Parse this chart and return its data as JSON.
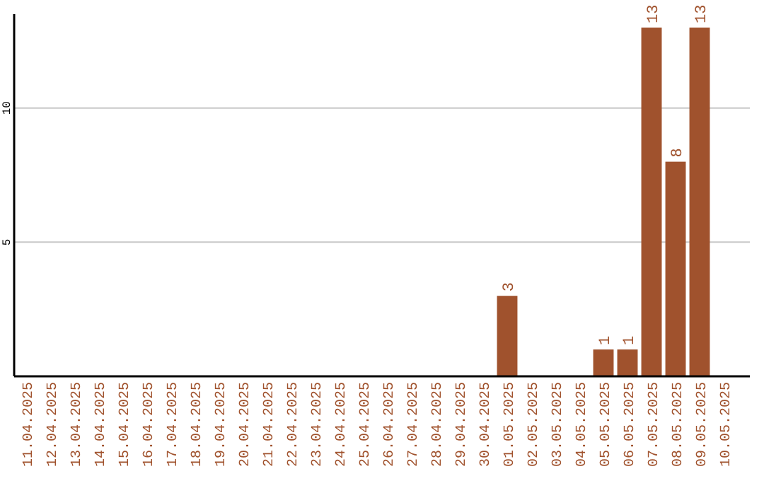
{
  "chart_data": {
    "type": "bar",
    "categories": [
      "11.04.2025",
      "12.04.2025",
      "13.04.2025",
      "14.04.2025",
      "15.04.2025",
      "16.04.2025",
      "17.04.2025",
      "18.04.2025",
      "19.04.2025",
      "20.04.2025",
      "21.04.2025",
      "22.04.2025",
      "23.04.2025",
      "24.04.2025",
      "25.04.2025",
      "26.04.2025",
      "27.04.2025",
      "28.04.2025",
      "29.04.2025",
      "30.04.2025",
      "01.05.2025",
      "02.05.2025",
      "03.05.2025",
      "04.05.2025",
      "05.05.2025",
      "06.05.2025",
      "07.05.2025",
      "08.05.2025",
      "09.05.2025",
      "10.05.2025"
    ],
    "values": [
      0,
      0,
      0,
      0,
      0,
      0,
      0,
      0,
      0,
      0,
      0,
      0,
      0,
      0,
      0,
      0,
      0,
      0,
      0,
      0,
      3,
      0,
      0,
      0,
      1,
      1,
      13,
      8,
      13,
      0
    ],
    "value_labels": [
      null,
      null,
      null,
      null,
      null,
      null,
      null,
      null,
      null,
      null,
      null,
      null,
      null,
      null,
      null,
      null,
      null,
      null,
      null,
      null,
      "3",
      null,
      null,
      null,
      "1",
      "1",
      "13",
      "8",
      "13",
      null
    ],
    "color": "#a0522d",
    "ylim": [
      0,
      13.5
    ],
    "yticks": [
      5,
      10
    ],
    "grid": "y"
  }
}
